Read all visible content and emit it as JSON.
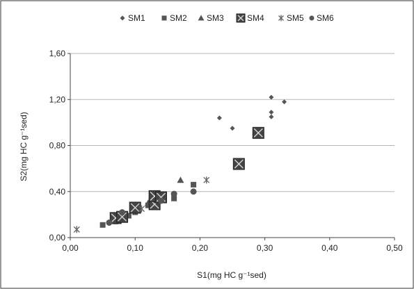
{
  "chart_data": {
    "type": "scatter",
    "xlabel": "S1(mg HC  g⁻¹sed)",
    "ylabel": "S2(mg HC  g⁻¹sed)",
    "xlim": [
      0,
      0.5
    ],
    "ylim": [
      0,
      1.6
    ],
    "x_ticks": [
      "0,00",
      "0,10",
      "0,20",
      "0,30",
      "0,40",
      "0,50"
    ],
    "y_ticks": [
      "0,00",
      "0,40",
      "0,80",
      "1,20",
      "1,60"
    ],
    "grid": "horizontal",
    "legend_position": "top",
    "series": [
      {
        "name": "SM1",
        "marker": "diamond",
        "color": "#555555",
        "points": [
          [
            0.23,
            1.04
          ],
          [
            0.25,
            0.95
          ],
          [
            0.31,
            1.22
          ],
          [
            0.31,
            1.09
          ],
          [
            0.31,
            1.05
          ],
          [
            0.33,
            1.18
          ]
        ]
      },
      {
        "name": "SM2",
        "marker": "square",
        "color": "#555555",
        "points": [
          [
            0.05,
            0.11
          ],
          [
            0.07,
            0.14
          ],
          [
            0.09,
            0.19
          ],
          [
            0.1,
            0.22
          ],
          [
            0.12,
            0.28
          ],
          [
            0.16,
            0.34
          ],
          [
            0.19,
            0.46
          ]
        ]
      },
      {
        "name": "SM3",
        "marker": "triangle",
        "color": "#555555",
        "points": [
          [
            0.17,
            0.5
          ],
          [
            0.08,
            0.2
          ],
          [
            0.12,
            0.3
          ]
        ]
      },
      {
        "name": "SM4",
        "marker": "boxed-x",
        "color": "#444444",
        "points": [
          [
            0.07,
            0.17
          ],
          [
            0.08,
            0.18
          ],
          [
            0.1,
            0.26
          ],
          [
            0.13,
            0.29
          ],
          [
            0.13,
            0.36
          ],
          [
            0.14,
            0.35
          ],
          [
            0.26,
            0.64
          ],
          [
            0.29,
            0.91
          ]
        ]
      },
      {
        "name": "SM5",
        "marker": "star",
        "color": "#666666",
        "points": [
          [
            0.01,
            0.07
          ],
          [
            0.11,
            0.25
          ],
          [
            0.21,
            0.5
          ]
        ]
      },
      {
        "name": "SM6",
        "marker": "circle",
        "color": "#555555",
        "points": [
          [
            0.06,
            0.13
          ],
          [
            0.08,
            0.22
          ],
          [
            0.14,
            0.32
          ],
          [
            0.16,
            0.38
          ],
          [
            0.19,
            0.4
          ]
        ]
      }
    ]
  }
}
